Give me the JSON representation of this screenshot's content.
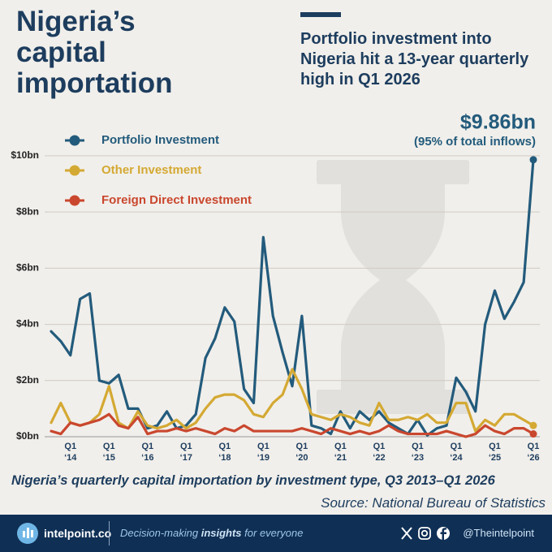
{
  "header": {
    "title": "Nigeria’s capital importation",
    "subtitle": "Portfolio investment into Nigeria hit a 13-year quarterly high in Q1 2026"
  },
  "chart_data": {
    "type": "line",
    "annotation": {
      "text": "$9.86bn",
      "note": "(95% of total inflows)"
    },
    "categories": [
      null,
      null,
      "Q1 ‘14",
      null,
      null,
      null,
      "Q1 ‘15",
      null,
      null,
      null,
      "Q1 ‘16",
      null,
      null,
      null,
      "Q1 ‘17",
      null,
      null,
      null,
      "Q1 ‘18",
      null,
      null,
      null,
      "Q1 ‘19",
      null,
      null,
      null,
      "Q1 ‘20",
      null,
      null,
      null,
      "Q1 ‘21",
      null,
      null,
      null,
      "Q1 ‘22",
      null,
      null,
      null,
      "Q1 ‘23",
      null,
      null,
      null,
      "Q1 ‘24",
      null,
      null,
      null,
      "Q1 ‘25",
      null,
      null,
      null,
      "Q1 ‘26"
    ],
    "series": [
      {
        "name": "Portfolio Investment",
        "color": "#235b7c",
        "values": [
          3.75,
          3.4,
          2.9,
          4.9,
          5.1,
          2.0,
          1.9,
          2.2,
          1.0,
          1.0,
          0.3,
          0.4,
          0.9,
          0.3,
          0.4,
          0.8,
          2.8,
          3.5,
          4.6,
          4.1,
          1.7,
          1.2,
          7.1,
          4.3,
          3.0,
          1.8,
          4.3,
          0.4,
          0.3,
          0.1,
          0.9,
          0.3,
          0.9,
          0.6,
          0.9,
          0.5,
          0.3,
          0.1,
          0.6,
          0.05,
          0.3,
          0.4,
          2.1,
          1.6,
          0.9,
          4.0,
          5.2,
          4.2,
          4.8,
          5.5,
          9.86
        ]
      },
      {
        "name": "Other Investment",
        "color": "#d4a933",
        "values": [
          0.5,
          1.2,
          0.5,
          0.4,
          0.5,
          0.8,
          1.8,
          0.5,
          0.3,
          0.9,
          0.4,
          0.3,
          0.4,
          0.6,
          0.3,
          0.5,
          1.0,
          1.4,
          1.5,
          1.5,
          1.3,
          0.8,
          0.7,
          1.2,
          1.5,
          2.4,
          1.7,
          0.8,
          0.7,
          0.6,
          0.8,
          0.7,
          0.5,
          0.4,
          1.2,
          0.6,
          0.6,
          0.7,
          0.6,
          0.8,
          0.5,
          0.5,
          1.2,
          1.2,
          0.2,
          0.6,
          0.4,
          0.8,
          0.8,
          0.6,
          0.4
        ]
      },
      {
        "name": "Foreign Direct Investment",
        "color": "#c9472e",
        "values": [
          0.2,
          0.1,
          0.5,
          0.4,
          0.5,
          0.6,
          0.8,
          0.4,
          0.3,
          0.7,
          0.1,
          0.2,
          0.2,
          0.3,
          0.2,
          0.3,
          0.2,
          0.1,
          0.3,
          0.2,
          0.4,
          0.2,
          0.2,
          0.2,
          0.2,
          0.2,
          0.3,
          0.2,
          0.1,
          0.3,
          0.2,
          0.1,
          0.2,
          0.1,
          0.2,
          0.4,
          0.2,
          0.1,
          0.1,
          0.1,
          0.1,
          0.2,
          0.1,
          0.0,
          0.1,
          0.4,
          0.2,
          0.1,
          0.3,
          0.3,
          0.1
        ]
      }
    ],
    "ylim": [
      0,
      10.2
    ],
    "yticks": [
      {
        "value": 0,
        "label": "$0bn"
      },
      {
        "value": 2,
        "label": "$2bn"
      },
      {
        "value": 4,
        "label": "$4bn"
      },
      {
        "value": 6,
        "label": "$6bn"
      },
      {
        "value": 8,
        "label": "$8bn"
      },
      {
        "value": 10,
        "label": "$10bn"
      }
    ],
    "grid": true,
    "legend": "top-left"
  },
  "caption": "Nigeria’s quarterly capital importation by investment type, Q3 2013–Q1 2026",
  "source": "Source: National Bureau of Statistics",
  "footer": {
    "brand": "intelpoint.co",
    "tagline": [
      "Decision-making ",
      "insights",
      " for everyone"
    ],
    "handle": "@Theintelpoint"
  }
}
